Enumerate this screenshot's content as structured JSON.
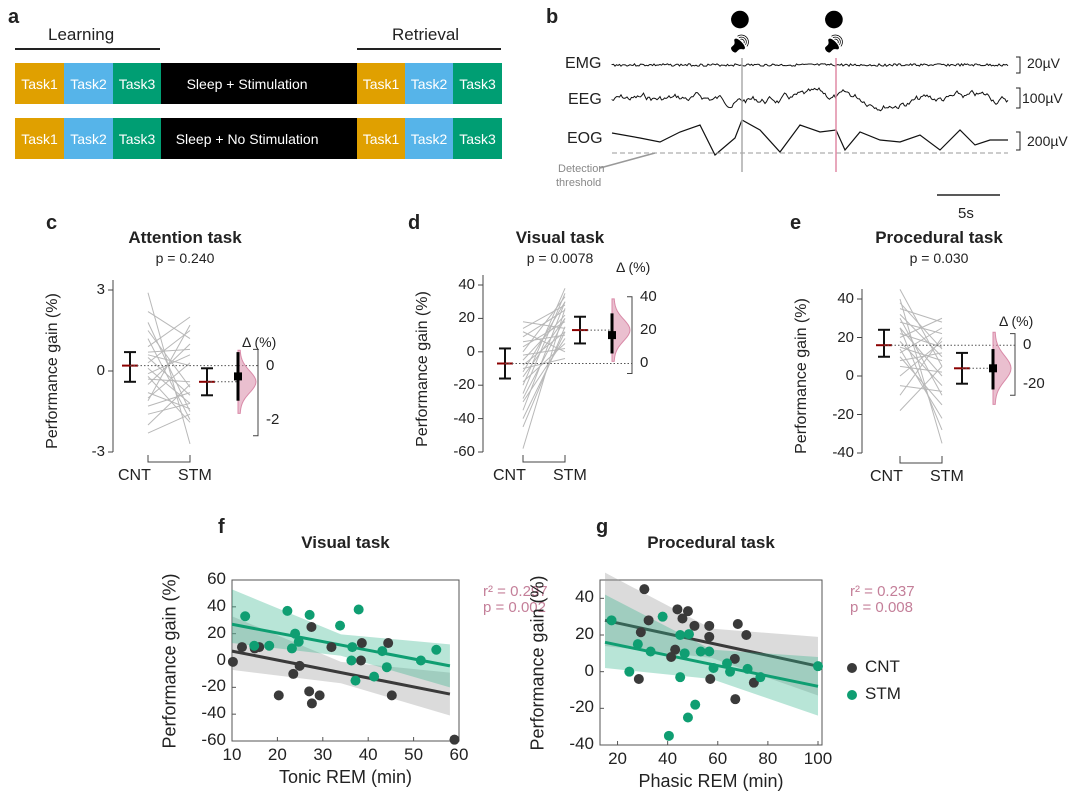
{
  "panel_letters": [
    "a",
    "b",
    "c",
    "d",
    "e",
    "f",
    "g"
  ],
  "colors": {
    "task1": "#E0A000",
    "task2": "#56B4E9",
    "task3": "#009E73",
    "cnt": "#3a3a3a",
    "stm": "#0f9e72",
    "stats": "#c47f99",
    "delta": "#d98aa8",
    "grey_line": "#b8b8b8",
    "mean": "#8b0000"
  },
  "panel_a": {
    "learning": "Learning",
    "retrieval": "Retrieval",
    "task1": "Task1",
    "task2": "Task2",
    "task3": "Task3",
    "stim": "Sleep + Stimulation",
    "nostim": "Sleep + No Stimulation",
    "icons": [
      "speaker-on-icon",
      "speaker-muted-icon"
    ]
  },
  "panel_b": {
    "channels": [
      "EMG",
      "EEG",
      "EOG"
    ],
    "scales": [
      "20µV",
      "100µV",
      "200µV"
    ],
    "threshold_label_1": "Detection",
    "threshold_label_2": "threshold",
    "time_scale": "5s",
    "icons": [
      "speaker-muted-icon",
      "speaker-on-icon"
    ]
  },
  "chart_data": [
    {
      "id": "c",
      "type": "paired-dot",
      "title": "Attention task",
      "p": "p = 0.240",
      "ylabel": "Performance gain (%)",
      "categories": [
        "CNT",
        "STM"
      ],
      "ylim": [
        -3,
        3
      ],
      "yticks": [
        "3",
        "0",
        "-3"
      ],
      "delta_label": "Δ (%)",
      "delta_ticks": [
        "0",
        "-2"
      ],
      "cnt": {
        "mean": 0.2,
        "ci": [
          -0.4,
          0.7
        ]
      },
      "stm": {
        "mean": -0.4,
        "ci": [
          -0.9,
          0.1
        ]
      },
      "delta": {
        "mean": -0.4,
        "ci": [
          -1.3,
          0.5
        ]
      },
      "pairs": [
        [
          2.9,
          -2.7
        ],
        [
          2.2,
          1.2
        ],
        [
          1.8,
          -1.5
        ],
        [
          1.2,
          -1.8
        ],
        [
          0.9,
          2.0
        ],
        [
          0.7,
          0.8
        ],
        [
          0.5,
          -0.9
        ],
        [
          0.3,
          1.5
        ],
        [
          0.1,
          -1.2
        ],
        [
          -0.1,
          0.6
        ],
        [
          -0.3,
          -0.4
        ],
        [
          -0.5,
          1.0
        ],
        [
          -0.8,
          -1.4
        ],
        [
          -1.0,
          0.3
        ],
        [
          -1.3,
          -0.8
        ],
        [
          -1.6,
          -1.2
        ],
        [
          -2.0,
          -0.5
        ],
        [
          -2.3,
          -1.6
        ],
        [
          1.5,
          -0.6
        ],
        [
          -0.2,
          -1.9
        ],
        [
          0.6,
          0.2
        ],
        [
          -1.1,
          1.7
        ]
      ]
    },
    {
      "id": "d",
      "type": "paired-dot",
      "title": "Visual task",
      "p": "p = 0.0078",
      "ylabel": "Performance gain (%)",
      "categories": [
        "CNT",
        "STM"
      ],
      "ylim": [
        -60,
        40
      ],
      "yticks": [
        "40",
        "20",
        "0",
        "-20",
        "-40",
        "-60"
      ],
      "delta_label": "Δ (%)",
      "delta_ticks": [
        "40",
        "20",
        "0"
      ],
      "cnt": {
        "mean": -7,
        "ci": [
          -16,
          2
        ]
      },
      "stm": {
        "mean": 13,
        "ci": [
          5,
          21
        ]
      },
      "delta": {
        "mean": 17,
        "ci": [
          6,
          30
        ]
      },
      "pairs": [
        [
          -58,
          26
        ],
        [
          -45,
          15
        ],
        [
          -35,
          30
        ],
        [
          -30,
          8
        ],
        [
          -25,
          35
        ],
        [
          -20,
          38
        ],
        [
          -18,
          5
        ],
        [
          -15,
          20
        ],
        [
          -12,
          30
        ],
        [
          -10,
          -4
        ],
        [
          -8,
          12
        ],
        [
          -5,
          22
        ],
        [
          -2,
          2
        ],
        [
          0,
          33
        ],
        [
          3,
          18
        ],
        [
          6,
          10
        ],
        [
          9,
          25
        ],
        [
          12,
          0
        ],
        [
          14,
          28
        ],
        [
          18,
          14
        ],
        [
          -40,
          12
        ],
        [
          -28,
          20
        ]
      ]
    },
    {
      "id": "e",
      "type": "paired-dot",
      "title": "Procedural task",
      "p": "p = 0.030",
      "ylabel": "Performance gain (%)",
      "categories": [
        "CNT",
        "STM"
      ],
      "ylim": [
        -40,
        40
      ],
      "yticks": [
        "40",
        "20",
        "0",
        "-20",
        "-40"
      ],
      "delta_label": "Δ (%)",
      "delta_ticks": [
        "0",
        "-20"
      ],
      "cnt": {
        "mean": 16,
        "ci": [
          10,
          24
        ]
      },
      "stm": {
        "mean": 4,
        "ci": [
          -4,
          12
        ]
      },
      "delta": {
        "mean": -12,
        "ci": [
          -23,
          -2
        ]
      },
      "pairs": [
        [
          45,
          5
        ],
        [
          40,
          -35
        ],
        [
          35,
          28
        ],
        [
          32,
          10
        ],
        [
          30,
          -10
        ],
        [
          28,
          22
        ],
        [
          25,
          0
        ],
        [
          22,
          15
        ],
        [
          20,
          30
        ],
        [
          18,
          -5
        ],
        [
          15,
          8
        ],
        [
          12,
          25
        ],
        [
          10,
          -15
        ],
        [
          8,
          12
        ],
        [
          5,
          2
        ],
        [
          0,
          18
        ],
        [
          -5,
          -8
        ],
        [
          -10,
          20
        ],
        [
          -18,
          5
        ],
        [
          25,
          -28
        ],
        [
          38,
          14
        ],
        [
          14,
          -22
        ]
      ]
    },
    {
      "id": "f",
      "type": "scatter",
      "title": "Visual task",
      "xlabel": "Tonic REM (min)",
      "ylabel": "Performance gain (%)",
      "xlim": [
        10,
        60
      ],
      "ylim": [
        -60,
        60
      ],
      "xticks": [
        10,
        20,
        30,
        40,
        50,
        60
      ],
      "yticks": [
        60,
        40,
        20,
        0,
        -20,
        -40,
        -60
      ],
      "stats": {
        "r2": "r² = 0.297",
        "p": "p = 0.002"
      },
      "series": [
        {
          "name": "CNT",
          "points": [
            [
              10.2,
              -1
            ],
            [
              12.2,
              10
            ],
            [
              15,
              9
            ],
            [
              16,
              10
            ],
            [
              27.5,
              25
            ],
            [
              31.9,
              10
            ],
            [
              38.6,
              13
            ],
            [
              44.4,
              13
            ],
            [
              38.4,
              0
            ],
            [
              24.9,
              -4
            ],
            [
              23.5,
              -10
            ],
            [
              20.3,
              -26
            ],
            [
              27,
              -23
            ],
            [
              29.3,
              -26
            ],
            [
              27.6,
              -32
            ],
            [
              45.2,
              -26
            ],
            [
              59,
              -59
            ]
          ],
          "fit": [
            [
              10,
              7
            ],
            [
              58,
              -25
            ]
          ]
        },
        {
          "name": "STM",
          "points": [
            [
              12.9,
              33
            ],
            [
              22.2,
              37
            ],
            [
              27.1,
              34
            ],
            [
              37.9,
              38
            ],
            [
              33.8,
              26
            ],
            [
              23.9,
              20
            ],
            [
              24.7,
              14
            ],
            [
              23.2,
              9
            ],
            [
              14.9,
              11
            ],
            [
              18.2,
              11
            ],
            [
              36.5,
              10
            ],
            [
              36.3,
              0
            ],
            [
              43.1,
              7
            ],
            [
              44.1,
              -5
            ],
            [
              41.3,
              -12
            ],
            [
              37.2,
              -15
            ],
            [
              51.6,
              0
            ],
            [
              55,
              8
            ]
          ],
          "fit": [
            [
              10,
              27
            ],
            [
              58,
              -4
            ]
          ]
        }
      ]
    },
    {
      "id": "g",
      "type": "scatter",
      "title": "Procedural task",
      "xlabel": "Phasic REM (min)",
      "ylabel": "Performance gain (%)",
      "xlim": [
        13,
        101.6
      ],
      "ylim": [
        -40,
        50
      ],
      "xticks": [
        20,
        40,
        60,
        80,
        100
      ],
      "yticks": [
        40,
        20,
        0,
        -20,
        -40
      ],
      "stats": {
        "r2": "r² = 0.237",
        "p": "p = 0.008"
      },
      "legend": {
        "position": "right",
        "entries": [
          "CNT",
          "STM"
        ]
      },
      "series": [
        {
          "name": "CNT",
          "points": [
            [
              30.7,
              45
            ],
            [
              32.4,
              28
            ],
            [
              29.3,
              21.5
            ],
            [
              28.5,
              -4
            ],
            [
              43.9,
              34
            ],
            [
              48.1,
              33
            ],
            [
              45.9,
              29
            ],
            [
              50.7,
              25
            ],
            [
              56.6,
              25
            ],
            [
              56.6,
              19
            ],
            [
              43,
              12
            ],
            [
              41.4,
              8
            ],
            [
              68,
              26
            ],
            [
              71.4,
              20
            ],
            [
              66.8,
              7
            ],
            [
              57,
              -4
            ],
            [
              67,
              -15
            ],
            [
              74.4,
              -6
            ]
          ],
          "fit": [
            [
              15,
              28
            ],
            [
              100,
              3
            ]
          ]
        },
        {
          "name": "STM",
          "points": [
            [
              17.6,
              28
            ],
            [
              38,
              30
            ],
            [
              45,
              20
            ],
            [
              48.5,
              20.5
            ],
            [
              28.1,
              15
            ],
            [
              33.2,
              11
            ],
            [
              46.8,
              10
            ],
            [
              53.2,
              11
            ],
            [
              56.6,
              11
            ],
            [
              58.3,
              2
            ],
            [
              63.7,
              4.5
            ],
            [
              64.9,
              0
            ],
            [
              71.9,
              1.5
            ],
            [
              77,
              -3
            ],
            [
              24.7,
              0
            ],
            [
              45,
              -3
            ],
            [
              51,
              -18
            ],
            [
              48.1,
              -25
            ],
            [
              40.5,
              -35
            ],
            [
              100,
              3
            ]
          ],
          "fit": [
            [
              15,
              16
            ],
            [
              100,
              -8
            ]
          ]
        }
      ]
    }
  ]
}
